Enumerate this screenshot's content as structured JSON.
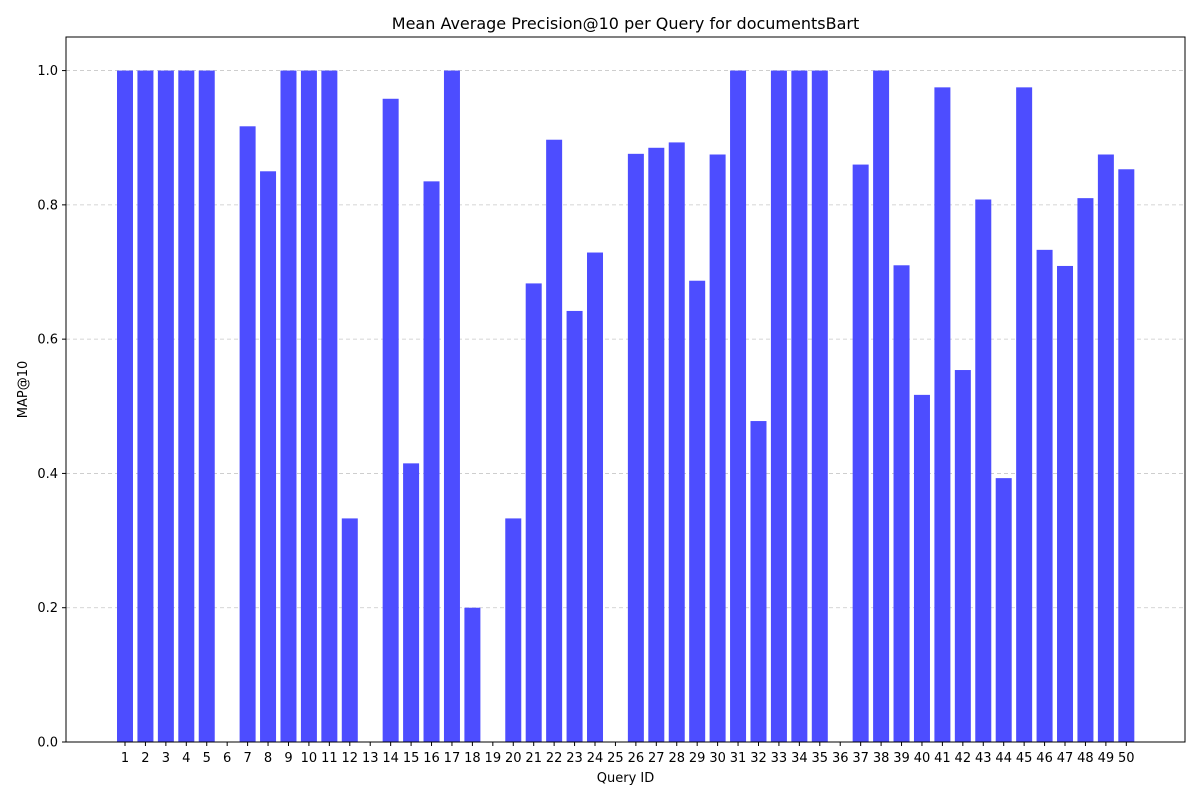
{
  "chart_data": {
    "type": "bar",
    "title": "Mean Average Precision@10 per Query for documentsBart",
    "xlabel": "Query ID",
    "ylabel": "MAP@10",
    "categories": [
      "1",
      "2",
      "3",
      "4",
      "5",
      "6",
      "7",
      "8",
      "9",
      "10",
      "11",
      "12",
      "13",
      "14",
      "15",
      "16",
      "17",
      "18",
      "19",
      "20",
      "21",
      "22",
      "23",
      "24",
      "25",
      "26",
      "27",
      "28",
      "29",
      "30",
      "31",
      "32",
      "33",
      "34",
      "35",
      "36",
      "37",
      "38",
      "39",
      "40",
      "41",
      "42",
      "43",
      "44",
      "45",
      "46",
      "47",
      "48",
      "49",
      "50"
    ],
    "values": [
      1.0,
      1.0,
      1.0,
      1.0,
      1.0,
      0.0,
      0.917,
      0.85,
      1.0,
      1.0,
      1.0,
      0.333,
      0.0,
      0.958,
      0.415,
      0.835,
      1.0,
      0.2,
      0.0,
      0.333,
      0.683,
      0.897,
      0.642,
      0.729,
      0.0,
      0.876,
      0.885,
      0.893,
      0.687,
      0.875,
      1.0,
      0.478,
      1.0,
      1.0,
      1.0,
      0.0,
      0.86,
      1.0,
      0.71,
      0.517,
      0.975,
      0.554,
      0.808,
      0.393,
      0.975,
      0.733,
      0.709,
      0.81,
      0.875,
      0.853
    ],
    "ylim": [
      0.0,
      1.05
    ],
    "yticks": [
      "0.0",
      "0.2",
      "0.4",
      "0.6",
      "0.8",
      "1.0"
    ],
    "grid": "y-dashed",
    "bar_color": "#4d4dff"
  }
}
